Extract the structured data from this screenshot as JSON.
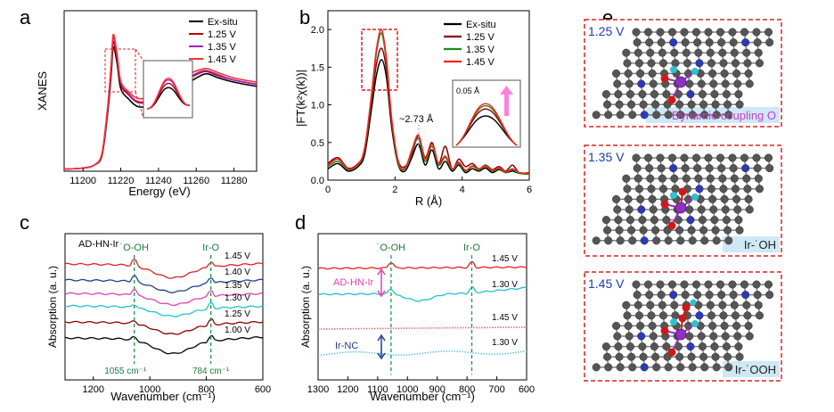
{
  "panel_labels": {
    "a": "a",
    "b": "b",
    "c": "c",
    "d": "d",
    "e": "e"
  },
  "chart_data": [
    {
      "id": "a",
      "type": "line",
      "xlabel": "Energy (eV)",
      "ylabel": "XANES",
      "xlim": [
        11190,
        11292
      ],
      "ylim": [
        0,
        1.55
      ],
      "xticks": [
        11200,
        11220,
        11240,
        11260,
        11280
      ],
      "legend": [
        "Ex-situ",
        "1.25 V",
        "1.35 V",
        "1.45 V"
      ],
      "colors": [
        "#000000",
        "#c00000",
        "#a020c0",
        "#ff3030"
      ],
      "series": [
        {
          "name": "Ex-situ",
          "x": [
            11190,
            11200,
            11206,
            11210,
            11213,
            11215,
            11216,
            11218,
            11220,
            11224,
            11230,
            11240,
            11250,
            11255,
            11262,
            11266,
            11272,
            11280,
            11292
          ],
          "y": [
            0.02,
            0.03,
            0.06,
            0.15,
            0.55,
            0.95,
            1.2,
            1.05,
            0.8,
            0.7,
            0.62,
            0.66,
            0.76,
            0.84,
            0.92,
            0.94,
            0.9,
            0.86,
            0.82
          ]
        },
        {
          "name": "1.25 V",
          "x": [
            11190,
            11200,
            11206,
            11210,
            11213,
            11215,
            11216,
            11218,
            11220,
            11224,
            11230,
            11240,
            11250,
            11255,
            11262,
            11266,
            11272,
            11280,
            11292
          ],
          "y": [
            0.02,
            0.03,
            0.06,
            0.16,
            0.58,
            1.0,
            1.25,
            1.1,
            0.84,
            0.74,
            0.66,
            0.7,
            0.8,
            0.88,
            0.95,
            0.96,
            0.92,
            0.88,
            0.84
          ]
        },
        {
          "name": "1.35 V",
          "x": [
            11190,
            11200,
            11206,
            11210,
            11213,
            11215,
            11216,
            11218,
            11220,
            11224,
            11230,
            11240,
            11250,
            11255,
            11262,
            11266,
            11272,
            11280,
            11292
          ],
          "y": [
            0.02,
            0.03,
            0.06,
            0.17,
            0.6,
            1.04,
            1.3,
            1.12,
            0.86,
            0.75,
            0.67,
            0.71,
            0.81,
            0.89,
            0.96,
            0.97,
            0.93,
            0.88,
            0.84
          ]
        },
        {
          "name": "1.45 V",
          "x": [
            11190,
            11200,
            11206,
            11210,
            11213,
            11215,
            11216,
            11218,
            11220,
            11224,
            11230,
            11240,
            11250,
            11255,
            11262,
            11266,
            11272,
            11280,
            11292
          ],
          "y": [
            0.02,
            0.03,
            0.06,
            0.17,
            0.61,
            1.05,
            1.32,
            1.14,
            0.87,
            0.77,
            0.7,
            0.74,
            0.85,
            0.93,
            0.98,
            0.99,
            0.95,
            0.9,
            0.86
          ]
        }
      ]
    },
    {
      "id": "b",
      "type": "line",
      "xlabel": "R (Å)",
      "ylabel": "|FT(k²χ(k))|",
      "xlim": [
        0,
        6
      ],
      "ylim": [
        0,
        2.25
      ],
      "xticks": [
        0,
        2,
        4,
        6
      ],
      "yticks": [
        0.0,
        0.5,
        1.0,
        1.5,
        2.0
      ],
      "legend": [
        "Ex-situ",
        "1.25 V",
        "1.35 V",
        "1.45 V"
      ],
      "colors": [
        "#000000",
        "#8b0000",
        "#1a8a1a",
        "#ff2020"
      ],
      "annotation": "~2.73 Å",
      "inset_label": "0.05 Å",
      "series": [
        {
          "name": "Ex-situ",
          "x": [
            0,
            0.3,
            0.6,
            0.9,
            1.1,
            1.3,
            1.45,
            1.6,
            1.75,
            1.9,
            2.1,
            2.3,
            2.5,
            2.7,
            2.9,
            3.1,
            3.3,
            3.5,
            3.7,
            3.9,
            4.1,
            4.3,
            4.5,
            4.7,
            4.9,
            5.1,
            5.3,
            5.5,
            5.7,
            6
          ],
          "y": [
            0.15,
            0.22,
            0.12,
            0.18,
            0.35,
            0.95,
            1.4,
            1.6,
            1.35,
            0.7,
            0.2,
            0.12,
            0.3,
            0.48,
            0.2,
            0.4,
            0.15,
            0.25,
            0.12,
            0.2,
            0.1,
            0.15,
            0.12,
            0.16,
            0.1,
            0.14,
            0.1,
            0.12,
            0.09,
            0.08
          ]
        },
        {
          "name": "1.25 V",
          "x": [
            0,
            0.3,
            0.6,
            0.9,
            1.1,
            1.3,
            1.45,
            1.6,
            1.75,
            1.9,
            2.1,
            2.3,
            2.5,
            2.7,
            2.9,
            3.1,
            3.3,
            3.5,
            3.7,
            3.9,
            4.1,
            4.3,
            4.5,
            4.7,
            4.9,
            5.1,
            5.3,
            5.5,
            5.7,
            6
          ],
          "y": [
            0.22,
            0.3,
            0.16,
            0.22,
            0.4,
            1.05,
            1.55,
            1.75,
            1.45,
            0.75,
            0.25,
            0.18,
            0.35,
            0.58,
            0.3,
            0.5,
            0.22,
            0.45,
            0.15,
            0.28,
            0.18,
            0.22,
            0.15,
            0.2,
            0.14,
            0.18,
            0.12,
            0.2,
            0.1,
            0.1
          ]
        },
        {
          "name": "1.35 V",
          "x": [
            0,
            0.3,
            0.6,
            0.9,
            1.1,
            1.3,
            1.45,
            1.6,
            1.75,
            1.9,
            2.1,
            2.3,
            2.5,
            2.7,
            2.9,
            3.1,
            3.3,
            3.5,
            3.7,
            3.9,
            4.1,
            4.3,
            4.5,
            4.7,
            4.9,
            5.1,
            5.3,
            5.5,
            5.7,
            6
          ],
          "y": [
            0.18,
            0.25,
            0.14,
            0.2,
            0.42,
            1.1,
            1.7,
            1.95,
            1.55,
            0.8,
            0.22,
            0.15,
            0.38,
            0.55,
            0.25,
            0.45,
            0.2,
            0.3,
            0.14,
            0.22,
            0.12,
            0.18,
            0.14,
            0.18,
            0.12,
            0.15,
            0.1,
            0.14,
            0.09,
            0.08
          ]
        },
        {
          "name": "1.45 V",
          "x": [
            0,
            0.3,
            0.6,
            0.9,
            1.1,
            1.3,
            1.45,
            1.6,
            1.75,
            1.9,
            2.1,
            2.3,
            2.5,
            2.7,
            2.9,
            3.1,
            3.3,
            3.5,
            3.7,
            3.9,
            4.1,
            4.3,
            4.5,
            4.7,
            4.9,
            5.1,
            5.3,
            5.5,
            5.7,
            6
          ],
          "y": [
            0.2,
            0.28,
            0.15,
            0.21,
            0.44,
            1.15,
            1.75,
            2.0,
            1.6,
            0.82,
            0.24,
            0.16,
            0.4,
            0.6,
            0.28,
            0.48,
            0.22,
            0.32,
            0.15,
            0.24,
            0.13,
            0.19,
            0.15,
            0.19,
            0.13,
            0.16,
            0.11,
            0.15,
            0.1,
            0.09
          ]
        }
      ]
    },
    {
      "id": "c",
      "type": "line",
      "xlabel": "Wavenumber (cm⁻¹)",
      "ylabel": "Absorption (a. u.)",
      "xlim": [
        1300,
        600
      ],
      "xticks": [
        1200,
        1000,
        800,
        600
      ],
      "sample_label": "AD-HN-Ir",
      "peak_labels": [
        "˙O-OH",
        "Ir-O"
      ],
      "peak_positions": [
        1055,
        784
      ],
      "peak_values": [
        "1055 cm⁻¹",
        "784 cm⁻¹"
      ],
      "series": [
        {
          "name": "1.45 V",
          "color": "#e02020",
          "offset": 5,
          "dip": 0.35
        },
        {
          "name": "1.40 V",
          "color": "#1e3c8c",
          "offset": 4,
          "dip": 0.3
        },
        {
          "name": "1.35 V",
          "color": "#e040b0",
          "offset": 3,
          "dip": 0.28
        },
        {
          "name": "1.30 V",
          "color": "#20c0d0",
          "offset": 2,
          "dip": 0.25
        },
        {
          "name": "1.25 V",
          "color": "#8b0000",
          "offset": 1,
          "dip": 0.3
        },
        {
          "name": "1.00 V",
          "color": "#000000",
          "offset": 0,
          "dip": 0.4
        }
      ]
    },
    {
      "id": "d",
      "type": "line",
      "xlabel": "Wavenumber (cm⁻¹)",
      "ylabel": "Absorption (a. u.)",
      "xlim": [
        1300,
        600
      ],
      "xticks": [
        1300,
        1200,
        1100,
        1000,
        900,
        800,
        700,
        600
      ],
      "peak_labels": [
        "˙O-OH",
        "Ir-O"
      ],
      "peak_positions": [
        1055,
        784
      ],
      "group_labels": [
        "AD-HN-Ir",
        "Ir-NC"
      ],
      "series": [
        {
          "name": "1.45 V",
          "color": "#e02020",
          "group": "AD-HN-Ir",
          "style": "solid"
        },
        {
          "name": "1.30 V",
          "color": "#20c0d0",
          "group": "AD-HN-Ir",
          "style": "solid"
        },
        {
          "name": "1.45 V",
          "color": "#e07070",
          "group": "Ir-NC",
          "style": "dotted"
        },
        {
          "name": "1.30 V",
          "color": "#60c8e0",
          "group": "Ir-NC",
          "style": "dotted"
        }
      ]
    }
  ],
  "structures": {
    "title": "e",
    "panels": [
      {
        "voltage": "1.25 V",
        "caption": "Dynamic-coupling O"
      },
      {
        "voltage": "1.35 V",
        "caption": "Ir-˙OH"
      },
      {
        "voltage": "1.45 V",
        "caption": "Ir-˙OOH"
      }
    ],
    "colors": {
      "frame": "#e02020",
      "carbon": "#555555",
      "nitrogen": "#2a3ab8",
      "iridium": "#9030c0",
      "oxygen": "#d01818",
      "hydrogen": "#30c0d0",
      "caption_bg": "#cfe8f5",
      "voltage_text": "#1a3ab0"
    }
  }
}
